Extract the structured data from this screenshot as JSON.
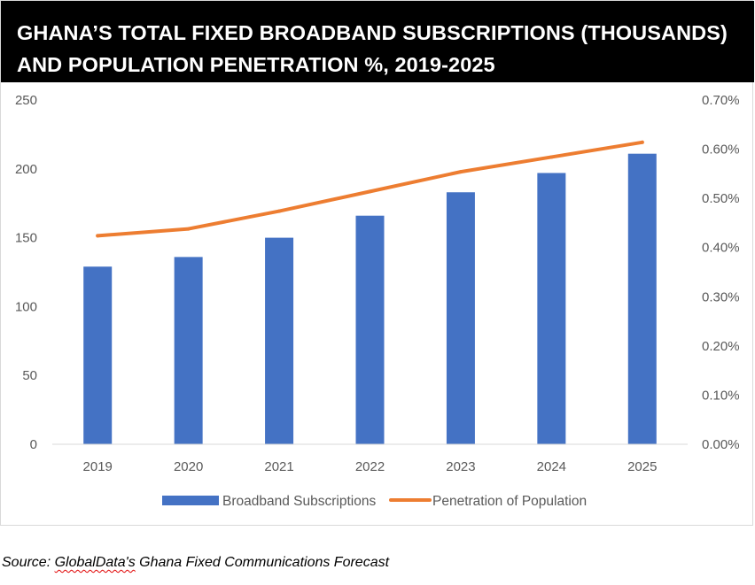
{
  "chart_data": {
    "type": "bar",
    "title_lines": [
      "GHANA’S TOTAL FIXED BROADBAND SUBSCRIPTIONS (THOUSANDS)",
      "AND POPULATION PENETRATION %, 2019-2025"
    ],
    "categories": [
      "2019",
      "2020",
      "2021",
      "2022",
      "2023",
      "2024",
      "2025"
    ],
    "series": [
      {
        "name": "Broadband Subscriptions",
        "type": "bar",
        "axis": "left",
        "color": "#4472c4",
        "values": [
          129,
          136,
          150,
          166,
          183,
          197,
          211
        ]
      },
      {
        "name": "Penetration of Population",
        "type": "line",
        "axis": "right",
        "color": "#ed7d31",
        "values": [
          0.424,
          0.438,
          0.474,
          0.514,
          0.554,
          0.584,
          0.614
        ]
      }
    ],
    "y_left": {
      "min": 0,
      "max": 250,
      "ticks": [
        0,
        50,
        100,
        150,
        200,
        250
      ],
      "tick_labels": [
        "0",
        "50",
        "100",
        "150",
        "200",
        "250"
      ]
    },
    "y_right": {
      "min": 0,
      "max": 0.7,
      "ticks": [
        0,
        0.1,
        0.2,
        0.3,
        0.4,
        0.5,
        0.6,
        0.7
      ],
      "tick_labels": [
        "0.00%",
        "0.10%",
        "0.20%",
        "0.30%",
        "0.40%",
        "0.50%",
        "0.60%",
        "0.70%"
      ]
    },
    "grid": false,
    "legend_position": "bottom"
  },
  "source": {
    "prefix": "Source: ",
    "brand": "GlobalData's",
    "suffix": " Ghana Fixed Communications Forecast"
  }
}
